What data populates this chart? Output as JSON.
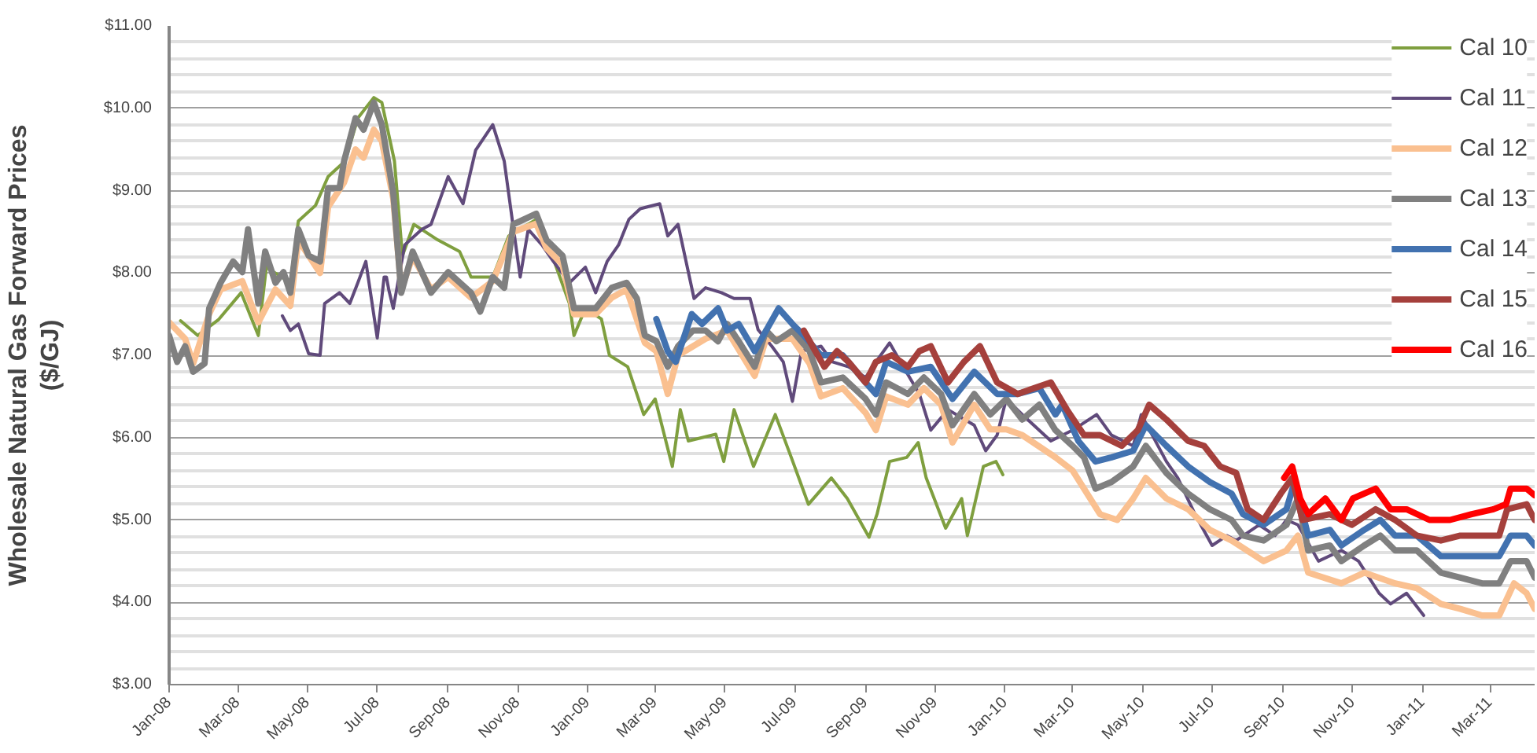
{
  "chart_data": {
    "type": "line",
    "ylabel": "Wholesale Natural Gas Forward Prices ($/GJ)",
    "xlim": [
      "2008-01-01",
      "2011-04-09"
    ],
    "xticks": [
      {
        "value": "2008-01-01",
        "label": "Jan-08"
      },
      {
        "value": "2008-03-01",
        "label": "Mar-08"
      },
      {
        "value": "2008-05-01",
        "label": "May-08"
      },
      {
        "value": "2008-07-01",
        "label": "Jul-08"
      },
      {
        "value": "2008-09-01",
        "label": "Sep-08"
      },
      {
        "value": "2008-11-01",
        "label": "Nov-08"
      },
      {
        "value": "2009-01-01",
        "label": "Jan-09"
      },
      {
        "value": "2009-03-01",
        "label": "Mar-09"
      },
      {
        "value": "2009-05-01",
        "label": "May-09"
      },
      {
        "value": "2009-07-01",
        "label": "Jul-09"
      },
      {
        "value": "2009-09-01",
        "label": "Sep-09"
      },
      {
        "value": "2009-11-01",
        "label": "Nov-09"
      },
      {
        "value": "2010-01-01",
        "label": "Jan-10"
      },
      {
        "value": "2010-03-01",
        "label": "Mar-10"
      },
      {
        "value": "2010-05-01",
        "label": "May-10"
      },
      {
        "value": "2010-07-01",
        "label": "Jul-10"
      },
      {
        "value": "2010-09-01",
        "label": "Sep-10"
      },
      {
        "value": "2010-11-01",
        "label": "Nov-10"
      },
      {
        "value": "2011-01-01",
        "label": "Jan-11"
      },
      {
        "value": "2011-03-01",
        "label": "Mar-11"
      }
    ],
    "ylim": [
      3,
      11
    ],
    "yticks": [
      {
        "value": 3,
        "label": "$3.00"
      },
      {
        "value": 3.2,
        "label": null
      },
      {
        "value": 3.4,
        "label": null
      },
      {
        "value": 3.6,
        "label": null
      },
      {
        "value": 3.8,
        "label": null
      },
      {
        "value": 4,
        "label": "$4.00"
      },
      {
        "value": 4.2,
        "label": null
      },
      {
        "value": 4.4,
        "label": null
      },
      {
        "value": 4.6,
        "label": null
      },
      {
        "value": 4.8,
        "label": null
      },
      {
        "value": 5,
        "label": "$5.00"
      },
      {
        "value": 5.2,
        "label": null
      },
      {
        "value": 5.4,
        "label": null
      },
      {
        "value": 5.6,
        "label": null
      },
      {
        "value": 5.8,
        "label": null
      },
      {
        "value": 6,
        "label": "$6.00"
      },
      {
        "value": 6.2,
        "label": null
      },
      {
        "value": 6.4,
        "label": null
      },
      {
        "value": 6.6,
        "label": null
      },
      {
        "value": 6.8,
        "label": null
      },
      {
        "value": 7,
        "label": "$7.00"
      },
      {
        "value": 7.2,
        "label": null
      },
      {
        "value": 7.4,
        "label": null
      },
      {
        "value": 7.6,
        "label": null
      },
      {
        "value": 7.8,
        "label": null
      },
      {
        "value": 8,
        "label": "$8.00"
      },
      {
        "value": 8.2,
        "label": null
      },
      {
        "value": 8.4,
        "label": null
      },
      {
        "value": 8.6,
        "label": null
      },
      {
        "value": 8.8,
        "label": null
      },
      {
        "value": 9,
        "label": "$9.00"
      },
      {
        "value": 9.2,
        "label": null
      },
      {
        "value": 9.4,
        "label": null
      },
      {
        "value": 9.6,
        "label": null
      },
      {
        "value": 9.8,
        "label": null
      },
      {
        "value": 10,
        "label": "$10.00"
      },
      {
        "value": 10.2,
        "label": null
      },
      {
        "value": 10.4,
        "label": null
      },
      {
        "value": 10.6,
        "label": null
      },
      {
        "value": 10.8,
        "label": null
      },
      {
        "value": 11,
        "label": "$11.00"
      }
    ],
    "grid": "y",
    "legend": "top right",
    "marker": "none",
    "line_style": "solid",
    "series": [
      {
        "name": "Cal 10",
        "color": "#7f9f3f",
        "x": [
          "2008-01-11",
          "2008-01-26",
          "2008-02-13",
          "2008-03-04",
          "2008-03-19",
          "2008-03-26",
          "2008-04-16",
          "2008-04-23",
          "2008-05-08",
          "2008-05-19",
          "2008-06-03",
          "2008-06-14",
          "2008-06-28",
          "2008-07-05",
          "2008-07-16",
          "2008-07-23",
          "2008-08-02",
          "2008-08-23",
          "2008-09-11",
          "2008-09-21",
          "2008-10-10",
          "2008-10-24",
          "2008-11-17",
          "2008-11-26",
          "2008-12-16",
          "2008-12-20",
          "2008-12-30",
          "2009-01-13",
          "2009-01-20",
          "2009-02-05",
          "2009-02-19",
          "2009-03-01",
          "2009-03-16",
          "2009-03-23",
          "2009-03-30",
          "2009-04-23",
          "2009-04-30",
          "2009-05-09",
          "2009-05-26",
          "2009-06-14",
          "2009-06-28",
          "2009-07-13",
          "2009-08-02",
          "2009-08-16",
          "2009-09-04",
          "2009-09-11",
          "2009-09-22",
          "2009-10-07",
          "2009-10-17",
          "2009-10-24",
          "2009-11-10",
          "2009-11-24",
          "2009-11-29",
          "2009-12-13",
          "2009-12-24",
          "2009-12-30"
        ],
        "values": [
          7.42,
          7.24,
          7.43,
          7.76,
          7.24,
          8.07,
          7.88,
          8.63,
          8.82,
          9.17,
          9.36,
          9.88,
          10.13,
          10.07,
          9.36,
          8.21,
          8.59,
          8.4,
          8.26,
          7.95,
          7.95,
          8.45,
          8.65,
          8.4,
          7.63,
          7.24,
          7.57,
          7.44,
          7.0,
          6.86,
          6.28,
          6.47,
          5.65,
          6.34,
          5.96,
          6.04,
          5.71,
          6.34,
          5.65,
          6.28,
          5.76,
          5.19,
          5.51,
          5.26,
          4.79,
          5.07,
          5.71,
          5.76,
          5.94,
          5.51,
          4.9,
          5.26,
          4.81,
          5.65,
          5.71,
          5.55
        ]
      },
      {
        "name": "Cal 11",
        "color": "#604a7b",
        "x": [
          "2008-04-09",
          "2008-04-16",
          "2008-04-23",
          "2008-05-02",
          "2008-05-12",
          "2008-05-16",
          "2008-05-29",
          "2008-06-07",
          "2008-06-14",
          "2008-06-21",
          "2008-07-01",
          "2008-07-05",
          "2008-07-07",
          "2008-07-09",
          "2008-07-11",
          "2008-07-15",
          "2008-07-25",
          "2008-08-09",
          "2008-08-17",
          "2008-09-01",
          "2008-09-14",
          "2008-09-25",
          "2008-10-10",
          "2008-10-20",
          "2008-10-27",
          "2008-11-03",
          "2008-11-10",
          "2008-11-22",
          "2008-12-02",
          "2008-12-16",
          "2008-12-30",
          "2009-01-08",
          "2009-01-18",
          "2009-01-28",
          "2009-02-06",
          "2009-02-16",
          "2009-03-05",
          "2009-03-12",
          "2009-03-21",
          "2009-04-04",
          "2009-04-14",
          "2009-04-28",
          "2009-05-09",
          "2009-05-23",
          "2009-05-30",
          "2009-06-11",
          "2009-06-21",
          "2009-06-29",
          "2009-07-07",
          "2009-07-24",
          "2009-08-03",
          "2009-08-17",
          "2009-09-01",
          "2009-09-10",
          "2009-09-22",
          "2009-10-04",
          "2009-10-18",
          "2009-10-28",
          "2009-11-12",
          "2009-12-05",
          "2009-12-15",
          "2009-12-25",
          "2010-01-02",
          "2010-01-16",
          "2010-02-10",
          "2010-03-01",
          "2010-03-22",
          "2010-04-04",
          "2010-04-23",
          "2010-04-30",
          "2010-05-22",
          "2010-06-01",
          "2010-06-16",
          "2010-07-01",
          "2010-07-14",
          "2010-07-22",
          "2010-08-11",
          "2010-08-25",
          "2010-09-04",
          "2010-09-14",
          "2010-10-02",
          "2010-10-22",
          "2010-11-06",
          "2010-11-24",
          "2010-12-04",
          "2010-12-18",
          "2011-01-02"
        ],
        "values": [
          7.48,
          7.3,
          7.38,
          7.02,
          7.0,
          7.63,
          7.76,
          7.63,
          7.88,
          8.14,
          7.21,
          7.7,
          7.95,
          7.95,
          7.8,
          7.57,
          8.34,
          8.53,
          8.59,
          9.17,
          8.84,
          9.49,
          9.8,
          9.36,
          8.65,
          7.95,
          8.53,
          8.34,
          8.14,
          7.88,
          8.07,
          7.76,
          8.14,
          8.34,
          8.65,
          8.78,
          8.84,
          8.45,
          8.59,
          7.69,
          7.82,
          7.76,
          7.69,
          7.69,
          7.31,
          7.11,
          6.92,
          6.44,
          7.05,
          7.11,
          6.92,
          6.86,
          6.73,
          6.92,
          7.15,
          6.86,
          6.53,
          6.09,
          6.34,
          6.15,
          5.84,
          6.03,
          6.47,
          6.28,
          5.96,
          6.09,
          6.28,
          6.03,
          5.9,
          6.28,
          5.71,
          5.51,
          5.07,
          4.69,
          4.81,
          4.75,
          4.94,
          4.81,
          5.0,
          4.94,
          4.5,
          4.63,
          4.5,
          4.11,
          3.98,
          4.11,
          3.84
        ]
      },
      {
        "name": "Cal 12",
        "color": "#fac090",
        "x": [
          "2008-01-01",
          "2008-01-15",
          "2008-01-22",
          "2008-02-05",
          "2008-02-15",
          "2008-03-05",
          "2008-03-19",
          "2008-04-03",
          "2008-04-16",
          "2008-04-23",
          "2008-05-12",
          "2008-05-19",
          "2008-06-02",
          "2008-06-12",
          "2008-06-19",
          "2008-06-28",
          "2008-07-05",
          "2008-07-15",
          "2008-07-22",
          "2008-08-01",
          "2008-08-17",
          "2008-09-01",
          "2008-09-21",
          "2008-10-10",
          "2008-10-28",
          "2008-11-17",
          "2008-11-26",
          "2008-12-10",
          "2008-12-20",
          "2009-01-08",
          "2009-01-22",
          "2009-02-04",
          "2009-02-20",
          "2009-03-02",
          "2009-03-12",
          "2009-03-21",
          "2009-04-14",
          "2009-05-03",
          "2009-05-27",
          "2009-06-06",
          "2009-06-29",
          "2009-07-14",
          "2009-07-24",
          "2009-08-12",
          "2009-09-01",
          "2009-09-10",
          "2009-09-19",
          "2009-10-08",
          "2009-10-22",
          "2009-11-06",
          "2009-11-16",
          "2009-12-05",
          "2009-12-19",
          "2010-01-02",
          "2010-01-16",
          "2010-02-14",
          "2010-03-01",
          "2010-03-25",
          "2010-04-09",
          "2010-04-23",
          "2010-05-04",
          "2010-05-22",
          "2010-06-10",
          "2010-06-29",
          "2010-07-18",
          "2010-08-15",
          "2010-09-04",
          "2010-09-14",
          "2010-09-23",
          "2010-10-22",
          "2010-11-11",
          "2010-12-08",
          "2010-12-27",
          "2011-01-17",
          "2011-02-03",
          "2011-02-22",
          "2011-03-09",
          "2011-03-22",
          "2011-04-02",
          "2011-04-09"
        ],
        "values": [
          7.4,
          7.2,
          6.9,
          7.5,
          7.8,
          7.9,
          7.4,
          7.8,
          7.6,
          8.4,
          8.0,
          8.8,
          9.1,
          9.5,
          9.4,
          9.74,
          9.6,
          8.9,
          7.8,
          8.2,
          7.8,
          7.95,
          7.7,
          7.9,
          8.5,
          8.6,
          8.3,
          8.1,
          7.5,
          7.5,
          7.7,
          7.8,
          7.15,
          7.05,
          6.53,
          7.0,
          7.2,
          7.3,
          6.75,
          7.2,
          7.2,
          6.9,
          6.5,
          6.6,
          6.3,
          6.09,
          6.5,
          6.4,
          6.6,
          6.4,
          5.94,
          6.4,
          6.1,
          6.1,
          6.03,
          5.76,
          5.6,
          5.07,
          5.0,
          5.26,
          5.51,
          5.26,
          5.13,
          4.88,
          4.75,
          4.5,
          4.63,
          4.81,
          4.36,
          4.23,
          4.36,
          4.23,
          4.17,
          3.98,
          3.92,
          3.84,
          3.84,
          4.23,
          4.11,
          3.92
        ]
      },
      {
        "name": "Cal 13",
        "color": "#808080",
        "x": [
          "2008-01-01",
          "2008-01-08",
          "2008-01-15",
          "2008-01-22",
          "2008-02-01",
          "2008-02-05",
          "2008-02-15",
          "2008-02-26",
          "2008-03-05",
          "2008-03-10",
          "2008-03-19",
          "2008-03-25",
          "2008-04-03",
          "2008-04-10",
          "2008-04-16",
          "2008-04-23",
          "2008-05-02",
          "2008-05-12",
          "2008-05-19",
          "2008-05-29",
          "2008-06-02",
          "2008-06-12",
          "2008-06-19",
          "2008-06-28",
          "2008-07-05",
          "2008-07-15",
          "2008-07-22",
          "2008-08-01",
          "2008-08-17",
          "2008-09-01",
          "2008-09-21",
          "2008-09-29",
          "2008-10-10",
          "2008-10-20",
          "2008-10-28",
          "2008-11-17",
          "2008-11-26",
          "2008-12-10",
          "2008-12-20",
          "2009-01-08",
          "2009-01-22",
          "2009-02-04",
          "2009-02-13",
          "2009-02-20",
          "2009-03-02",
          "2009-03-12",
          "2009-03-21",
          "2009-04-03",
          "2009-04-14",
          "2009-04-25",
          "2009-05-03",
          "2009-05-13",
          "2009-05-27",
          "2009-06-06",
          "2009-06-15",
          "2009-06-29",
          "2009-07-14",
          "2009-07-24",
          "2009-08-12",
          "2009-09-01",
          "2009-09-10",
          "2009-09-19",
          "2009-10-08",
          "2009-10-22",
          "2009-11-06",
          "2009-11-16",
          "2009-12-05",
          "2009-12-19",
          "2010-01-02",
          "2010-01-16",
          "2010-01-31",
          "2010-02-14",
          "2010-03-01",
          "2010-03-11",
          "2010-03-21",
          "2010-04-04",
          "2010-04-23",
          "2010-05-04",
          "2010-05-22",
          "2010-06-10",
          "2010-06-29",
          "2010-07-18",
          "2010-07-28",
          "2010-08-15",
          "2010-09-04",
          "2010-09-14",
          "2010-09-23",
          "2010-10-12",
          "2010-10-22",
          "2010-11-11",
          "2010-11-25",
          "2010-12-08",
          "2010-12-27",
          "2011-01-17",
          "2011-02-03",
          "2011-02-22",
          "2011-03-09",
          "2011-03-19",
          "2011-04-02",
          "2011-04-09"
        ],
        "values": [
          7.24,
          6.92,
          7.11,
          6.8,
          6.9,
          7.57,
          7.88,
          8.14,
          8.01,
          8.53,
          7.63,
          8.26,
          7.88,
          8.01,
          7.76,
          8.53,
          8.21,
          8.14,
          9.03,
          9.03,
          9.36,
          9.88,
          9.74,
          10.07,
          9.8,
          8.97,
          7.76,
          8.26,
          7.76,
          8.01,
          7.76,
          7.53,
          7.95,
          7.82,
          8.59,
          8.72,
          8.4,
          8.21,
          7.57,
          7.57,
          7.82,
          7.88,
          7.69,
          7.24,
          7.17,
          6.86,
          7.11,
          7.3,
          7.3,
          7.17,
          7.38,
          7.17,
          6.86,
          7.3,
          7.17,
          7.3,
          7.05,
          6.67,
          6.73,
          6.47,
          6.28,
          6.67,
          6.53,
          6.73,
          6.53,
          6.15,
          6.53,
          6.28,
          6.47,
          6.22,
          6.4,
          6.09,
          5.9,
          5.76,
          5.38,
          5.46,
          5.65,
          5.9,
          5.57,
          5.32,
          5.13,
          5.0,
          4.81,
          4.75,
          4.94,
          5.26,
          4.63,
          4.69,
          4.5,
          4.69,
          4.81,
          4.63,
          4.63,
          4.36,
          4.3,
          4.23,
          4.23,
          4.5,
          4.5,
          4.3
        ]
      },
      {
        "name": "Cal 14",
        "color": "#4272b0",
        "x": [
          "2009-03-02",
          "2009-03-12",
          "2009-03-19",
          "2009-04-02",
          "2009-04-11",
          "2009-04-25",
          "2009-05-03",
          "2009-05-13",
          "2009-05-27",
          "2009-06-06",
          "2009-06-17",
          "2009-06-29",
          "2009-07-09",
          "2009-07-24",
          "2009-08-12",
          "2009-09-01",
          "2009-09-10",
          "2009-09-19",
          "2009-10-08",
          "2009-10-28",
          "2009-11-16",
          "2009-12-05",
          "2009-12-25",
          "2010-01-12",
          "2010-01-31",
          "2010-02-14",
          "2010-02-20",
          "2010-03-06",
          "2010-03-21",
          "2010-04-04",
          "2010-04-23",
          "2010-05-04",
          "2010-05-22",
          "2010-06-10",
          "2010-06-29",
          "2010-07-18",
          "2010-07-28",
          "2010-08-15",
          "2010-09-04",
          "2010-09-11",
          "2010-09-23",
          "2010-10-12",
          "2010-10-22",
          "2010-11-11",
          "2010-11-25",
          "2010-12-08",
          "2010-12-27",
          "2011-01-17",
          "2011-02-03",
          "2011-02-22",
          "2011-03-09",
          "2011-03-19",
          "2011-04-02",
          "2011-04-09"
        ],
        "values": [
          7.44,
          7.05,
          6.92,
          7.5,
          7.38,
          7.57,
          7.3,
          7.38,
          7.05,
          7.3,
          7.57,
          7.38,
          7.24,
          7.0,
          7.0,
          6.67,
          6.53,
          6.92,
          6.8,
          6.86,
          6.47,
          6.8,
          6.53,
          6.53,
          6.6,
          6.28,
          6.4,
          5.96,
          5.71,
          5.76,
          5.84,
          6.15,
          5.9,
          5.65,
          5.46,
          5.32,
          5.07,
          4.94,
          5.13,
          5.46,
          4.81,
          4.88,
          4.69,
          4.88,
          5.0,
          4.81,
          4.81,
          4.56,
          4.56,
          4.56,
          4.56,
          4.81,
          4.81,
          4.69
        ]
      },
      {
        "name": "Cal 15",
        "color": "#a5403c",
        "x": [
          "2009-07-09",
          "2009-07-19",
          "2009-07-27",
          "2009-08-07",
          "2009-08-17",
          "2009-09-01",
          "2009-09-10",
          "2009-09-24",
          "2009-10-08",
          "2009-10-18",
          "2009-10-28",
          "2009-11-12",
          "2009-11-26",
          "2009-12-10",
          "2009-12-25",
          "2010-01-12",
          "2010-01-26",
          "2010-02-10",
          "2010-02-24",
          "2010-03-11",
          "2010-03-25",
          "2010-04-13",
          "2010-04-27",
          "2010-05-07",
          "2010-05-22",
          "2010-06-10",
          "2010-06-24",
          "2010-07-08",
          "2010-07-22",
          "2010-08-01",
          "2010-08-15",
          "2010-08-30",
          "2010-09-09",
          "2010-09-18",
          "2010-10-12",
          "2010-10-31",
          "2010-11-21",
          "2010-12-08",
          "2010-12-27",
          "2011-01-17",
          "2011-02-03",
          "2011-02-22",
          "2011-03-09",
          "2011-03-16",
          "2011-04-02",
          "2011-04-09"
        ],
        "values": [
          7.3,
          7.05,
          6.86,
          7.05,
          6.92,
          6.67,
          6.92,
          7.0,
          6.86,
          7.05,
          7.11,
          6.67,
          6.92,
          7.11,
          6.67,
          6.53,
          6.6,
          6.67,
          6.34,
          6.03,
          6.03,
          5.9,
          6.09,
          6.4,
          6.22,
          5.96,
          5.9,
          5.65,
          5.57,
          5.13,
          5.0,
          5.32,
          5.51,
          5.0,
          5.07,
          4.94,
          5.13,
          5.0,
          4.81,
          4.75,
          4.81,
          4.81,
          4.81,
          5.13,
          5.19,
          5.0
        ]
      },
      {
        "name": "Cal 16",
        "color": "#ff0000",
        "x": [
          "2010-09-02",
          "2010-09-09",
          "2010-09-16",
          "2010-09-23",
          "2010-10-08",
          "2010-10-22",
          "2010-11-01",
          "2010-11-21",
          "2010-12-04",
          "2010-12-18",
          "2011-01-07",
          "2011-01-25",
          "2011-02-13",
          "2011-03-04",
          "2011-03-15",
          "2011-03-19",
          "2011-04-02",
          "2011-04-09"
        ],
        "values": [
          5.51,
          5.65,
          5.26,
          5.07,
          5.26,
          5.0,
          5.26,
          5.38,
          5.13,
          5.13,
          5.0,
          5.0,
          5.07,
          5.13,
          5.19,
          5.38,
          5.38,
          5.3
        ]
      }
    ]
  }
}
